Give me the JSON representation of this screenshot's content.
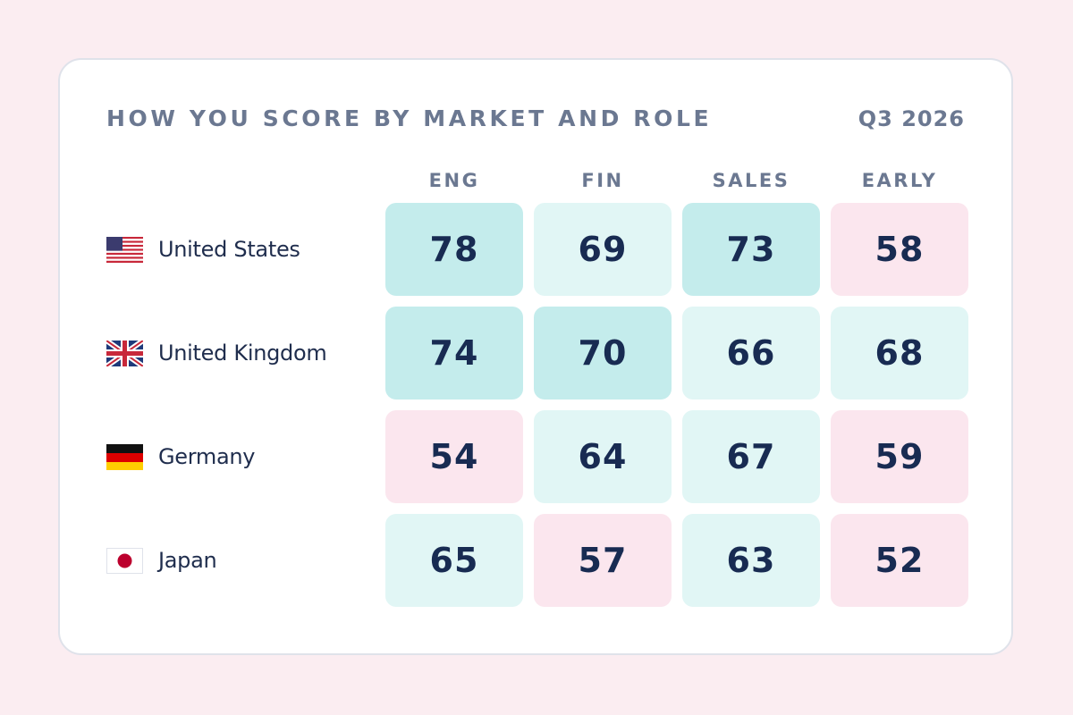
{
  "chart_data": {
    "type": "heatmap",
    "title": "HOW YOU SCORE BY MARKET AND ROLE",
    "period": "Q3 2026",
    "columns": [
      "ENG",
      "FIN",
      "SALES",
      "EARLY"
    ],
    "rows": [
      {
        "country": "United States",
        "flag": "us-flag-icon",
        "values": [
          78,
          69,
          73,
          58
        ]
      },
      {
        "country": "United Kingdom",
        "flag": "uk-flag-icon",
        "values": [
          74,
          70,
          66,
          68
        ]
      },
      {
        "country": "Germany",
        "flag": "germany-flag-icon",
        "values": [
          54,
          64,
          67,
          59
        ]
      },
      {
        "country": "Japan",
        "flag": "japan-flag-icon",
        "values": [
          65,
          57,
          63,
          52
        ]
      }
    ],
    "color_bands": {
      "high": "#c4ecec",
      "mid": "#e1f6f5",
      "low": "#fbe6ee"
    }
  }
}
